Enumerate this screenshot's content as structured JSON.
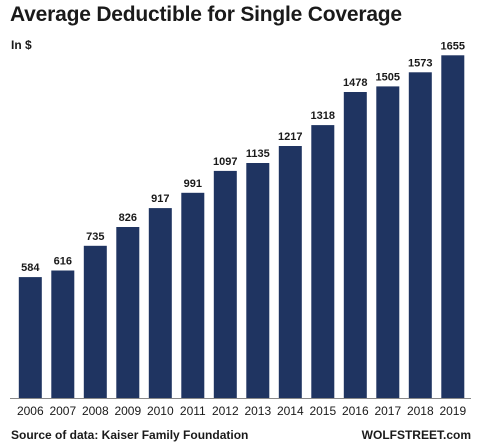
{
  "chart_data": {
    "type": "bar",
    "title": "Average Deductible  for Single Coverage",
    "unit_label": "In $",
    "categories": [
      "2006",
      "2007",
      "2008",
      "2009",
      "2010",
      "2011",
      "2012",
      "2013",
      "2014",
      "2015",
      "2016",
      "2017",
      "2018",
      "2019"
    ],
    "values": [
      584,
      616,
      735,
      826,
      917,
      991,
      1097,
      1135,
      1217,
      1318,
      1478,
      1505,
      1573,
      1655
    ],
    "ylim": [
      0,
      1700
    ],
    "bar_color": "#1f3461",
    "grid": false,
    "source": "Source of data: Kaiser Family Foundation",
    "credit": "WOLFSTREET.com"
  }
}
